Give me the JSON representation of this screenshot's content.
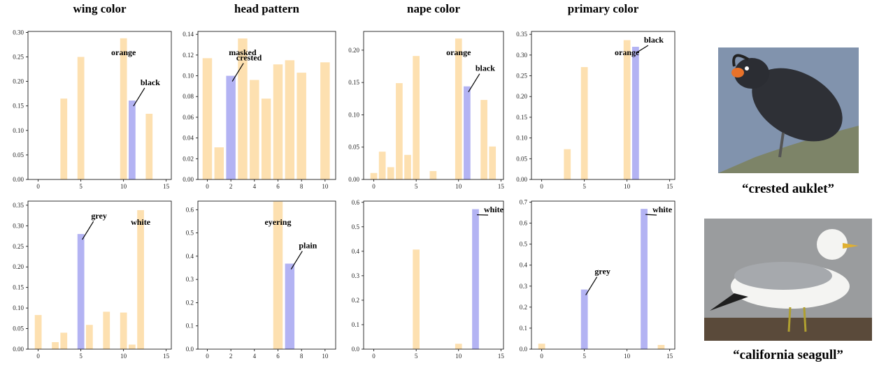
{
  "chart_data": [
    {
      "type": "bar",
      "title": "wing color",
      "x": [
        3,
        5,
        10,
        11,
        13
      ],
      "values": [
        0.165,
        0.25,
        0.288,
        0.161,
        0.134
      ],
      "colors": [
        "#fde0b0",
        "#fde0b0",
        "#fde0b0",
        "#b3b3f3",
        "#fde0b0"
      ],
      "labels": [
        null,
        null,
        "orange",
        "black",
        null
      ],
      "xlim": [
        -1.2,
        15.6
      ],
      "xticks": [
        0,
        5,
        10,
        15
      ],
      "ylim": [
        0,
        0.302
      ],
      "yticks": [
        {
          "value": 0,
          "label": "0.00"
        },
        {
          "value": 0.05,
          "label": "0.05"
        },
        {
          "value": 0.1,
          "label": "0.10"
        },
        {
          "value": 0.15,
          "label": "0.15"
        },
        {
          "value": 0.2,
          "label": "0.20"
        },
        {
          "value": 0.25,
          "label": "0.25"
        },
        {
          "value": 0.3,
          "label": "0.30"
        }
      ]
    },
    {
      "type": "bar",
      "title": "head pattern",
      "x": [
        0,
        1,
        2,
        3,
        4,
        5,
        6,
        7,
        8,
        10
      ],
      "values": [
        0.117,
        0.031,
        0.1,
        0.136,
        0.096,
        0.078,
        0.111,
        0.115,
        0.103,
        0.113
      ],
      "colors": [
        "#fde0b0",
        "#fde0b0",
        "#b3b3f3",
        "#fde0b0",
        "#fde0b0",
        "#fde0b0",
        "#fde0b0",
        "#fde0b0",
        "#fde0b0",
        "#fde0b0"
      ],
      "labels": [
        null,
        null,
        "crested",
        "masked",
        null,
        null,
        null,
        null,
        null,
        null
      ],
      "xlim": [
        -0.8,
        10.9
      ],
      "xticks": [
        0,
        2,
        4,
        6,
        8,
        10
      ],
      "ylim": [
        0,
        0.1428
      ],
      "yticks": [
        {
          "value": 0,
          "label": "0.00"
        },
        {
          "value": 0.02,
          "label": "0.02"
        },
        {
          "value": 0.04,
          "label": "0.04"
        },
        {
          "value": 0.06,
          "label": "0.06"
        },
        {
          "value": 0.08,
          "label": "0.08"
        },
        {
          "value": 0.1,
          "label": "0.10"
        },
        {
          "value": 0.12,
          "label": "0.12"
        },
        {
          "value": 0.14,
          "label": "0.14"
        }
      ]
    },
    {
      "type": "bar",
      "title": "nape color",
      "x": [
        0,
        1,
        2,
        3,
        4,
        5,
        7,
        10,
        11,
        13,
        14
      ],
      "values": [
        0.01,
        0.043,
        0.019,
        0.149,
        0.038,
        0.191,
        0.013,
        0.218,
        0.144,
        0.123,
        0.051
      ],
      "colors": [
        "#fde0b0",
        "#fde0b0",
        "#fde0b0",
        "#fde0b0",
        "#fde0b0",
        "#fde0b0",
        "#fde0b0",
        "#fde0b0",
        "#b3b3f3",
        "#fde0b0",
        "#fde0b0"
      ],
      "labels": [
        null,
        null,
        null,
        null,
        null,
        null,
        null,
        "orange",
        "black",
        null,
        null
      ],
      "xlim": [
        -1.2,
        15.3
      ],
      "xticks": [
        0,
        5,
        10,
        15
      ],
      "ylim": [
        0,
        0.229
      ],
      "yticks": [
        {
          "value": 0,
          "label": "0.00"
        },
        {
          "value": 0.05,
          "label": "0.05"
        },
        {
          "value": 0.1,
          "label": "0.10"
        },
        {
          "value": 0.15,
          "label": "0.15"
        },
        {
          "value": 0.2,
          "label": "0.20"
        }
      ]
    },
    {
      "type": "bar",
      "title": "primary color",
      "x": [
        3,
        5,
        10,
        11
      ],
      "values": [
        0.073,
        0.271,
        0.336,
        0.32
      ],
      "colors": [
        "#fde0b0",
        "#fde0b0",
        "#fde0b0",
        "#b3b3f3"
      ],
      "labels": [
        null,
        null,
        "orange",
        "black"
      ],
      "xlim": [
        -1.2,
        15.6
      ],
      "xticks": [
        0,
        5,
        10,
        15
      ],
      "ylim": [
        0,
        0.357
      ],
      "yticks": [
        {
          "value": 0,
          "label": "0.00"
        },
        {
          "value": 0.05,
          "label": "0.05"
        },
        {
          "value": 0.1,
          "label": "0.10"
        },
        {
          "value": 0.15,
          "label": "0.15"
        },
        {
          "value": 0.2,
          "label": "0.20"
        },
        {
          "value": 0.25,
          "label": "0.25"
        },
        {
          "value": 0.3,
          "label": "0.30"
        },
        {
          "value": 0.35,
          "label": "0.35"
        }
      ]
    },
    {
      "type": "bar",
      "x": [
        0,
        2,
        3,
        5,
        6,
        8,
        10,
        11,
        12
      ],
      "values": [
        0.083,
        0.017,
        0.04,
        0.28,
        0.059,
        0.091,
        0.089,
        0.011,
        0.338
      ],
      "colors": [
        "#fde0b0",
        "#fde0b0",
        "#fde0b0",
        "#b3b3f3",
        "#fde0b0",
        "#fde0b0",
        "#fde0b0",
        "#fde0b0",
        "#fde0b0"
      ],
      "labels": [
        null,
        null,
        null,
        "grey",
        null,
        null,
        null,
        null,
        "white"
      ],
      "xlim": [
        -1.2,
        15.6
      ],
      "xticks": [
        0,
        5,
        10,
        15
      ],
      "ylim": [
        0,
        0.36
      ],
      "yticks": [
        {
          "value": 0,
          "label": "0.00"
        },
        {
          "value": 0.05,
          "label": "0.05"
        },
        {
          "value": 0.1,
          "label": "0.10"
        },
        {
          "value": 0.15,
          "label": "0.15"
        },
        {
          "value": 0.2,
          "label": "0.20"
        },
        {
          "value": 0.25,
          "label": "0.25"
        },
        {
          "value": 0.3,
          "label": "0.30"
        },
        {
          "value": 0.35,
          "label": "0.35"
        }
      ]
    },
    {
      "type": "bar",
      "x": [
        6,
        7
      ],
      "values": [
        0.635,
        0.368
      ],
      "colors": [
        "#fde0b0",
        "#b3b3f3"
      ],
      "labels": [
        "eyering",
        "plain"
      ],
      "xlim": [
        -0.8,
        10.9
      ],
      "xticks": [
        0,
        2,
        4,
        6,
        8,
        10
      ],
      "ylim": [
        0,
        0.637
      ],
      "yticks": [
        {
          "value": 0,
          "label": "0.0"
        },
        {
          "value": 0.1,
          "label": "0.1"
        },
        {
          "value": 0.2,
          "label": "0.2"
        },
        {
          "value": 0.3,
          "label": "0.3"
        },
        {
          "value": 0.4,
          "label": "0.4"
        },
        {
          "value": 0.5,
          "label": "0.5"
        },
        {
          "value": 0.6,
          "label": "0.6"
        }
      ]
    },
    {
      "type": "bar",
      "x": [
        5,
        10,
        12
      ],
      "values": [
        0.407,
        0.022,
        0.572
      ],
      "colors": [
        "#fde0b0",
        "#fde0b0",
        "#b3b3f3"
      ],
      "labels": [
        null,
        null,
        "white"
      ],
      "xlim": [
        -1.2,
        15.3
      ],
      "xticks": [
        0,
        5,
        10,
        15
      ],
      "ylim": [
        0,
        0.605
      ],
      "yticks": [
        {
          "value": 0,
          "label": "0.0"
        },
        {
          "value": 0.1,
          "label": "0.1"
        },
        {
          "value": 0.2,
          "label": "0.2"
        },
        {
          "value": 0.3,
          "label": "0.3"
        },
        {
          "value": 0.4,
          "label": "0.4"
        },
        {
          "value": 0.5,
          "label": "0.5"
        },
        {
          "value": 0.6,
          "label": "0.6"
        }
      ]
    },
    {
      "type": "bar",
      "x": [
        0,
        5,
        12,
        14
      ],
      "values": [
        0.026,
        0.284,
        0.668,
        0.02
      ],
      "colors": [
        "#fde0b0",
        "#b3b3f3",
        "#b3b3f3",
        "#fde0b0"
      ],
      "labels": [
        null,
        "grey",
        "white",
        null
      ],
      "xlim": [
        -1.2,
        15.6
      ],
      "xticks": [
        0,
        5,
        10,
        15
      ],
      "ylim": [
        0,
        0.705
      ],
      "yticks": [
        {
          "value": 0,
          "label": "0.0"
        },
        {
          "value": 0.1,
          "label": "0.1"
        },
        {
          "value": 0.2,
          "label": "0.2"
        },
        {
          "value": 0.3,
          "label": "0.3"
        },
        {
          "value": 0.4,
          "label": "0.4"
        },
        {
          "value": 0.5,
          "label": "0.5"
        },
        {
          "value": 0.6,
          "label": "0.6"
        },
        {
          "value": 0.7,
          "label": "0.7"
        }
      ]
    }
  ],
  "images": [
    {
      "caption": "“crested auklet”"
    },
    {
      "caption": "“california seagull”"
    }
  ]
}
